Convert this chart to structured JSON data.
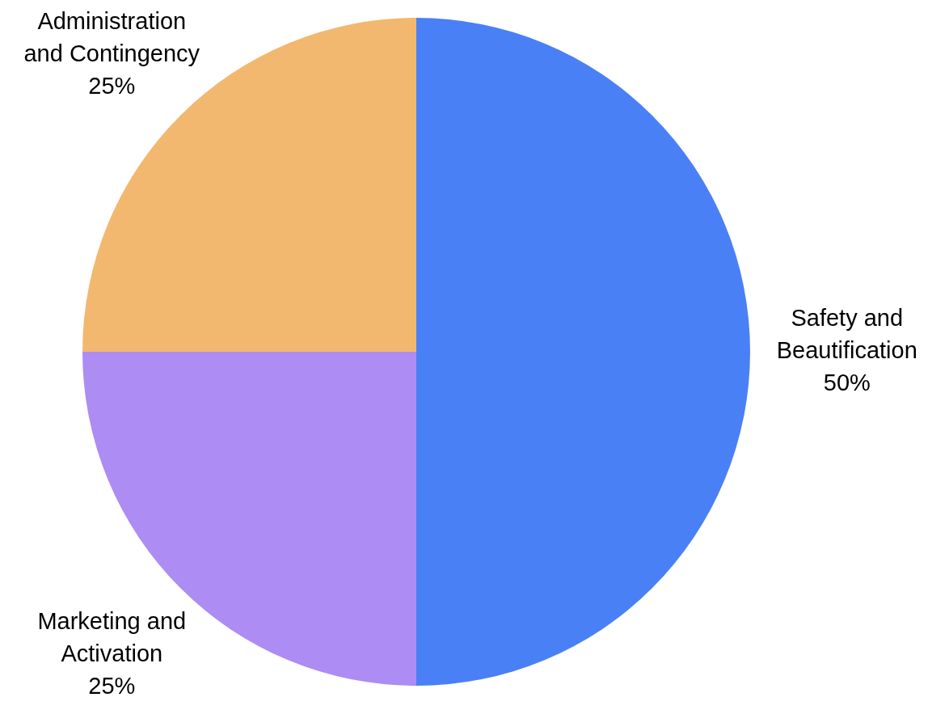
{
  "chart_data": {
    "type": "pie",
    "categories": [
      "Safety and Beautification",
      "Marketing and Activation",
      "Administration and Contingency"
    ],
    "values": [
      50,
      25,
      25
    ],
    "colors": [
      "#4a80f6",
      "#ad8cf3",
      "#f2b86f"
    ],
    "value_labels": [
      "50%",
      "25%",
      "25%"
    ],
    "legend": false
  }
}
